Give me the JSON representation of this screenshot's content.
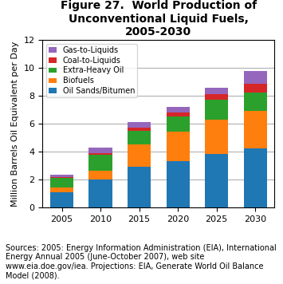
{
  "chart_data": {
    "type": "bar",
    "stacked": true,
    "title": "Figure 27.  World Production of Unconventional Liquid Fuels, 2005-2030",
    "y_label": "Million Barrels Oil Equivalent per Day",
    "categories": [
      "2005",
      "2010",
      "2015",
      "2020",
      "2025",
      "2030"
    ],
    "series": [
      {
        "name": "Oil Sands/Bitumen",
        "values": [
          1.1,
          2.0,
          2.9,
          3.3,
          3.8,
          4.2
        ]
      },
      {
        "name": "Biofuels",
        "values": [
          0.3,
          0.6,
          1.6,
          2.1,
          2.5,
          2.7
        ]
      },
      {
        "name": "Extra-Heavy Oil",
        "values": [
          0.7,
          1.15,
          1.0,
          1.1,
          1.4,
          1.3
        ]
      },
      {
        "name": "Coal-to-Liquids",
        "values": [
          0.05,
          0.1,
          0.2,
          0.3,
          0.4,
          0.65
        ]
      },
      {
        "name": "Gas-to-Liquids",
        "values": [
          0.2,
          0.45,
          0.4,
          0.4,
          0.45,
          0.9
        ]
      }
    ],
    "ylim": [
      0,
      12
    ],
    "yticks": [
      0,
      2,
      4,
      6,
      8,
      10,
      12
    ],
    "grid": true,
    "legend": "upper left",
    "annotations": [
      "Sources: 2005: Energy Information Administration (EIA), International Energy Annual 2005 (June-October 2007), web site www.eia.doe.gov/iea. Projections: EIA, Generate World Oil Balance Model (2008)."
    ]
  }
}
